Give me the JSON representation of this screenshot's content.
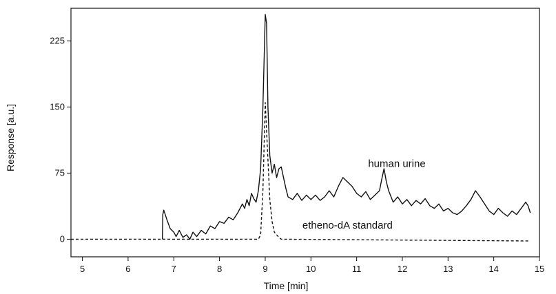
{
  "chart_data": {
    "type": "line",
    "title": "",
    "xlabel": "Time [min]",
    "ylabel": "Response [a.u.]",
    "xlim": [
      4.75,
      15.0
    ],
    "ylim": [
      -20,
      262
    ],
    "x_ticks": [
      5,
      6,
      7,
      8,
      9,
      10,
      11,
      12,
      13,
      14,
      15
    ],
    "y_ticks": [
      0,
      75,
      150,
      225
    ],
    "grid": false,
    "legend": "none",
    "series": [
      {
        "name": "human urine",
        "style": "solid",
        "color": "#111111",
        "points": [
          [
            6.75,
            0
          ],
          [
            6.76,
            28
          ],
          [
            6.78,
            33
          ],
          [
            6.85,
            22
          ],
          [
            6.92,
            12
          ],
          [
            7.0,
            8
          ],
          [
            7.05,
            3
          ],
          [
            7.12,
            10
          ],
          [
            7.2,
            2
          ],
          [
            7.28,
            5
          ],
          [
            7.35,
            0
          ],
          [
            7.42,
            8
          ],
          [
            7.5,
            3
          ],
          [
            7.6,
            10
          ],
          [
            7.7,
            6
          ],
          [
            7.8,
            15
          ],
          [
            7.9,
            12
          ],
          [
            8.0,
            20
          ],
          [
            8.1,
            18
          ],
          [
            8.2,
            25
          ],
          [
            8.3,
            22
          ],
          [
            8.4,
            30
          ],
          [
            8.5,
            40
          ],
          [
            8.55,
            35
          ],
          [
            8.6,
            45
          ],
          [
            8.65,
            38
          ],
          [
            8.7,
            52
          ],
          [
            8.75,
            46
          ],
          [
            8.8,
            42
          ],
          [
            8.85,
            55
          ],
          [
            8.9,
            80
          ],
          [
            8.95,
            150
          ],
          [
            9.0,
            255
          ],
          [
            9.03,
            245
          ],
          [
            9.06,
            150
          ],
          [
            9.1,
            95
          ],
          [
            9.15,
            75
          ],
          [
            9.2,
            85
          ],
          [
            9.25,
            70
          ],
          [
            9.3,
            80
          ],
          [
            9.35,
            82
          ],
          [
            9.4,
            70
          ],
          [
            9.45,
            58
          ],
          [
            9.5,
            48
          ],
          [
            9.6,
            45
          ],
          [
            9.7,
            52
          ],
          [
            9.8,
            44
          ],
          [
            9.9,
            50
          ],
          [
            10.0,
            45
          ],
          [
            10.1,
            50
          ],
          [
            10.2,
            44
          ],
          [
            10.3,
            48
          ],
          [
            10.4,
            55
          ],
          [
            10.5,
            48
          ],
          [
            10.6,
            60
          ],
          [
            10.7,
            70
          ],
          [
            10.8,
            65
          ],
          [
            10.9,
            60
          ],
          [
            11.0,
            52
          ],
          [
            11.1,
            48
          ],
          [
            11.2,
            54
          ],
          [
            11.3,
            45
          ],
          [
            11.4,
            50
          ],
          [
            11.5,
            55
          ],
          [
            11.55,
            68
          ],
          [
            11.6,
            80
          ],
          [
            11.65,
            65
          ],
          [
            11.7,
            55
          ],
          [
            11.8,
            42
          ],
          [
            11.9,
            48
          ],
          [
            12.0,
            40
          ],
          [
            12.1,
            45
          ],
          [
            12.2,
            38
          ],
          [
            12.3,
            44
          ],
          [
            12.4,
            40
          ],
          [
            12.5,
            46
          ],
          [
            12.6,
            38
          ],
          [
            12.7,
            35
          ],
          [
            12.8,
            40
          ],
          [
            12.9,
            32
          ],
          [
            13.0,
            35
          ],
          [
            13.1,
            30
          ],
          [
            13.2,
            28
          ],
          [
            13.3,
            32
          ],
          [
            13.4,
            38
          ],
          [
            13.5,
            45
          ],
          [
            13.6,
            55
          ],
          [
            13.7,
            48
          ],
          [
            13.8,
            40
          ],
          [
            13.9,
            32
          ],
          [
            14.0,
            28
          ],
          [
            14.1,
            35
          ],
          [
            14.2,
            30
          ],
          [
            14.3,
            26
          ],
          [
            14.4,
            32
          ],
          [
            14.5,
            28
          ],
          [
            14.6,
            35
          ],
          [
            14.7,
            42
          ],
          [
            14.75,
            38
          ],
          [
            14.8,
            30
          ]
        ]
      },
      {
        "name": "etheno-dA standard",
        "style": "dashed",
        "color": "#111111",
        "points": [
          [
            4.75,
            0
          ],
          [
            8.85,
            0
          ],
          [
            8.9,
            5
          ],
          [
            8.95,
            55
          ],
          [
            9.0,
            155
          ],
          [
            9.05,
            100
          ],
          [
            9.1,
            45
          ],
          [
            9.15,
            20
          ],
          [
            9.2,
            8
          ],
          [
            9.3,
            2
          ],
          [
            9.35,
            0
          ],
          [
            14.8,
            -2
          ]
        ]
      }
    ],
    "annotations": [
      {
        "text": "human urine",
        "x": 11.88,
        "y": 82
      },
      {
        "text": "etheno-dA standard",
        "x": 10.8,
        "y": 12
      }
    ]
  }
}
